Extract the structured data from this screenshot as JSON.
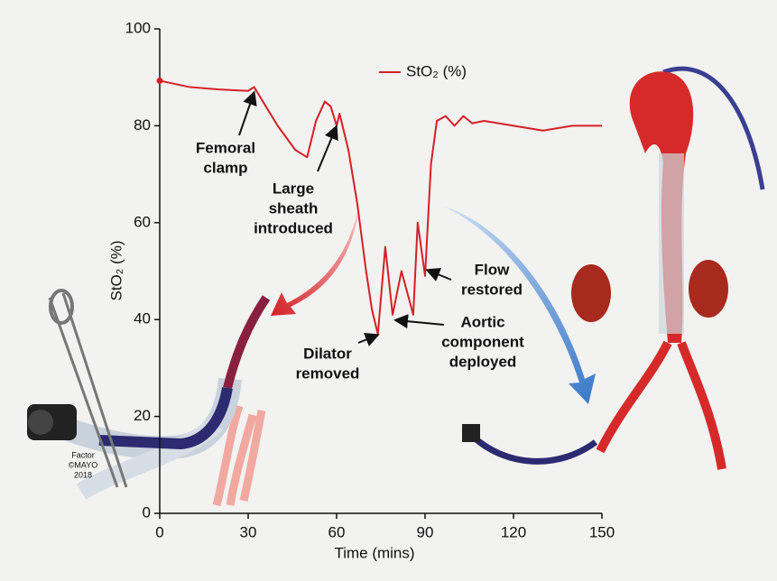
{
  "chart_data": {
    "type": "line",
    "x_label": "Time (mins)",
    "y_label": "StO₂ (%)",
    "xlim": [
      0,
      150
    ],
    "xticks": [
      0,
      30,
      60,
      90,
      120,
      150
    ],
    "ylim": [
      0,
      100
    ],
    "yticks": [
      0,
      20,
      40,
      60,
      80,
      100
    ],
    "legend": "top",
    "series": [
      {
        "name": "StO₂ (%)",
        "color": "#d42027",
        "x": [
          0,
          10,
          20,
          30,
          32,
          40,
          46,
          50,
          53,
          56,
          58,
          60,
          61,
          64,
          67,
          70,
          72,
          74,
          76.5,
          79,
          82,
          86,
          87.5,
          90,
          92,
          94,
          97,
          100,
          103,
          106,
          110,
          120,
          130,
          140,
          150
        ],
        "values": [
          89.3,
          88,
          87.5,
          87.2,
          88,
          80,
          75,
          73.5,
          81,
          85,
          84,
          80,
          82.5,
          75,
          64,
          50,
          42,
          37,
          55,
          41,
          50,
          41,
          60,
          49,
          72,
          81,
          82,
          80,
          82,
          80.5,
          81,
          80,
          79,
          80,
          80
        ]
      }
    ],
    "annotations": [
      {
        "lines": [
          "Femoral",
          "clamp"
        ]
      },
      {
        "lines": [
          "Large",
          "sheath",
          "introduced"
        ]
      },
      {
        "lines": [
          "Dilator",
          "removed"
        ]
      },
      {
        "lines": [
          "Aortic",
          "component",
          "deployed"
        ]
      },
      {
        "lines": [
          "Flow",
          "restored"
        ]
      }
    ],
    "credit": [
      "Factor",
      "©MAYO",
      "2018"
    ]
  }
}
